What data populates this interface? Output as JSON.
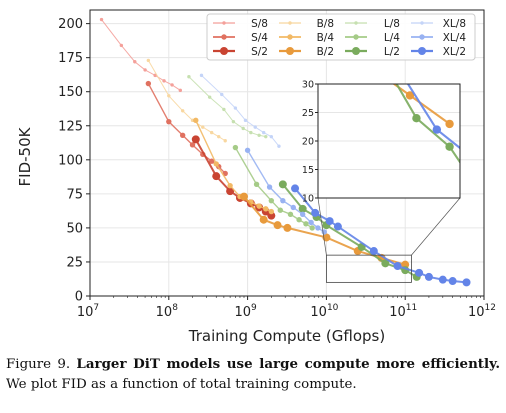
{
  "chart_data": {
    "type": "line",
    "xlabel": "Training Compute (Gflops)",
    "ylabel": "FID-50K",
    "xscale": "log",
    "xlim": [
      10000000.0,
      1000000000000.0
    ],
    "ylim": [
      0,
      210
    ],
    "yticks": [
      0,
      25,
      50,
      75,
      100,
      125,
      150,
      175,
      200
    ],
    "xticks": [
      {
        "base": "10",
        "exp": "7",
        "value": 10000000.0
      },
      {
        "base": "10",
        "exp": "8",
        "value": 100000000.0
      },
      {
        "base": "10",
        "exp": "9",
        "value": 1000000000.0
      },
      {
        "base": "10",
        "exp": "10",
        "value": 10000000000.0
      },
      {
        "base": "10",
        "exp": "11",
        "value": 100000000000.0
      },
      {
        "base": "10",
        "exp": "12",
        "value": 1000000000000.0
      }
    ],
    "grid": true,
    "legend_position": "top-right",
    "series": [
      {
        "name": "S/8",
        "color": "#f4a09a",
        "size": 1,
        "x": [
          14000000.0,
          25000000.0,
          37000000.0,
          50000000.0,
          67000000.0,
          87000000.0,
          110000000.0,
          140000000.0
        ],
        "y": [
          203,
          184,
          172,
          166,
          162,
          158,
          155,
          151
        ]
      },
      {
        "name": "S/4",
        "color": "#e07160",
        "size": 2,
        "x": [
          55000000.0,
          100000000.0,
          150000000.0,
          200000000.0,
          270000000.0,
          350000000.0,
          430000000.0,
          520000000.0
        ],
        "y": [
          156,
          128,
          118,
          111,
          104,
          99,
          95,
          90
        ]
      },
      {
        "name": "S/2",
        "color": "#c94432",
        "size": 3,
        "x": [
          220000000.0,
          400000000.0,
          600000000.0,
          800000000.0,
          1100000000.0,
          1400000000.0,
          1700000000.0,
          2000000000.0
        ],
        "y": [
          115,
          88,
          77,
          72,
          68,
          65,
          62,
          59
        ]
      },
      {
        "name": "B/8",
        "color": "#f8d7a0",
        "size": 1,
        "x": [
          55000000.0,
          100000000.0,
          150000000.0,
          200000000.0,
          270000000.0,
          350000000.0,
          430000000.0,
          520000000.0
        ],
        "y": [
          173,
          147,
          136,
          129,
          124,
          120,
          117,
          114
        ]
      },
      {
        "name": "B/4",
        "color": "#f2b965",
        "size": 2,
        "x": [
          220000000.0,
          400000000.0,
          600000000.0,
          800000000.0,
          1100000000.0,
          1400000000.0,
          1700000000.0,
          2000000000.0
        ],
        "y": [
          129,
          97,
          81,
          73,
          69,
          66,
          64,
          62
        ]
      },
      {
        "name": "B/2",
        "color": "#e89a3c",
        "size": 3,
        "x": [
          900000000.0,
          1600000000.0,
          2400000000.0,
          3200000000.0,
          10000000000.0,
          25000000000.0,
          50000000000.0,
          100000000000.0
        ],
        "y": [
          73,
          56,
          52,
          50,
          43,
          33,
          28,
          23
        ]
      },
      {
        "name": "L/8",
        "color": "#c6e0b0",
        "size": 1,
        "x": [
          180000000.0,
          330000000.0,
          500000000.0,
          660000000.0,
          880000000.0,
          1100000000.0,
          1400000000.0,
          1700000000.0
        ],
        "y": [
          161,
          146,
          137,
          128,
          123,
          120,
          118,
          117
        ]
      },
      {
        "name": "L/4",
        "color": "#a5cb87",
        "size": 2,
        "x": [
          700000000.0,
          1300000000.0,
          2000000000.0,
          2600000000.0,
          3500000000.0,
          4500000000.0,
          5500000000.0,
          6600000000.0
        ],
        "y": [
          109,
          82,
          70,
          63,
          60,
          56,
          53,
          50
        ]
      },
      {
        "name": "L/2",
        "color": "#7aab5d",
        "size": 3,
        "x": [
          2800000000.0,
          5000000000.0,
          7500000000.0,
          10000000000.0,
          28000000000.0,
          56000000000.0,
          100000000000.0,
          140000000000.0
        ],
        "y": [
          82,
          64,
          58,
          52,
          36,
          24,
          19,
          14
        ]
      },
      {
        "name": "XL/8",
        "color": "#c4d4f8",
        "size": 1,
        "x": [
          260000000.0,
          470000000.0,
          700000000.0,
          940000000.0,
          1250000000.0,
          1600000000.0,
          2000000000.0,
          2500000000.0
        ],
        "y": [
          162,
          148,
          138,
          129,
          124,
          120,
          117,
          110
        ]
      },
      {
        "name": "XL/4",
        "color": "#98b2f2",
        "size": 2,
        "x": [
          1000000000.0,
          1900000000.0,
          2800000000.0,
          3800000000.0,
          5000000000.0,
          6400000000.0,
          7800000000.0,
          9400000000.0
        ],
        "y": [
          107,
          80,
          70,
          65,
          60,
          54,
          50,
          47
        ]
      },
      {
        "name": "XL/2",
        "color": "#6384e8",
        "size": 3,
        "x": [
          4000000000.0,
          7200000000.0,
          11000000000.0,
          14000000000.0,
          40000000000.0,
          80000000000.0,
          150000000000.0,
          200000000000.0,
          300000000000.0,
          400000000000.0,
          600000000000.0
        ],
        "y": [
          79,
          61,
          55,
          51,
          33,
          22,
          17,
          14,
          12,
          11,
          10
        ]
      }
    ],
    "inset": {
      "xlim": [
        10000000000.0,
        120000000000.0
      ],
      "ylim": [
        10,
        30
      ],
      "yticks": [
        10,
        15,
        20,
        25,
        30
      ]
    }
  },
  "caption": {
    "prefix": "Figure 9.",
    "bold": "Larger DiT models use large compute more efficiently.",
    "rest": "We plot FID as a function of total training compute."
  }
}
